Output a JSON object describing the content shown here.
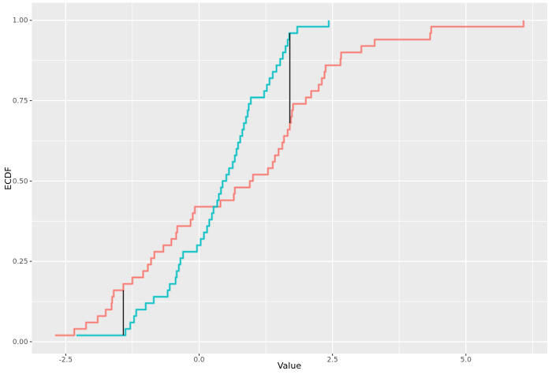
{
  "figure": {
    "background": "#FFFFFF",
    "panel_background": "#EBEBEB",
    "gridline_color": "#FFFFFF",
    "tick_color": "#333333",
    "tick_label_color": "#4D4D4D"
  },
  "chart_data": {
    "type": "line",
    "subtype": "ecdf-step",
    "title": "",
    "xlabel": "Value",
    "ylabel": "ECDF",
    "grid": true,
    "legend": false,
    "xlim": [
      -3.13,
      6.52
    ],
    "ylim": [
      -0.05,
      1.05
    ],
    "x_ticks": {
      "values": [
        -2.5,
        0.0,
        2.5,
        5.0
      ],
      "labels": [
        "-2.5",
        "0.0",
        "2.5",
        "5.0"
      ]
    },
    "x_minor_ticks": [
      -1.25,
      1.25,
      3.75,
      6.25
    ],
    "y_ticks": {
      "values": [
        0.0,
        0.25,
        0.5,
        0.75,
        1.0
      ],
      "labels": [
        "0.00",
        "0.25",
        "0.50",
        "0.75",
        "1.00"
      ]
    },
    "y_minor_ticks": [
      0.125,
      0.375,
      0.625,
      0.875
    ],
    "series": [
      {
        "name": "red",
        "color": "#F8766D",
        "n": 50,
        "values": [
          -2.7,
          -2.34,
          -2.12,
          -1.9,
          -1.75,
          -1.64,
          -1.63,
          -1.6,
          -1.42,
          -1.25,
          -1.05,
          -0.96,
          -0.9,
          -0.84,
          -0.67,
          -0.52,
          -0.43,
          -0.41,
          -0.16,
          -0.12,
          -0.08,
          0.4,
          0.65,
          0.67,
          0.95,
          1.01,
          1.29,
          1.38,
          1.42,
          1.49,
          1.56,
          1.59,
          1.66,
          1.7,
          1.72,
          1.74,
          1.76,
          2.0,
          2.1,
          2.24,
          2.3,
          2.35,
          2.37,
          2.65,
          2.66,
          3.04,
          3.29,
          4.33,
          4.35,
          6.08
        ]
      },
      {
        "name": "cyan",
        "color": "#00BFC4",
        "n": 50,
        "values": [
          -2.3,
          -1.38,
          -1.29,
          -1.22,
          -1.18,
          -1.0,
          -0.85,
          -0.59,
          -0.55,
          -0.44,
          -0.42,
          -0.38,
          -0.35,
          -0.3,
          -0.04,
          0.03,
          0.09,
          0.15,
          0.19,
          0.24,
          0.27,
          0.34,
          0.37,
          0.41,
          0.44,
          0.51,
          0.56,
          0.63,
          0.67,
          0.7,
          0.73,
          0.77,
          0.81,
          0.84,
          0.88,
          0.91,
          0.93,
          0.97,
          1.22,
          1.27,
          1.32,
          1.38,
          1.45,
          1.52,
          1.57,
          1.62,
          1.66,
          1.69,
          1.84,
          2.43
        ]
      }
    ],
    "ks_segments": [
      {
        "x": -1.42,
        "y_from": 0.02,
        "y_to": 0.16
      },
      {
        "x": 1.7,
        "y_from": 0.68,
        "y_to": 0.96
      }
    ],
    "ks_segment_color": "#1A1A1A"
  }
}
